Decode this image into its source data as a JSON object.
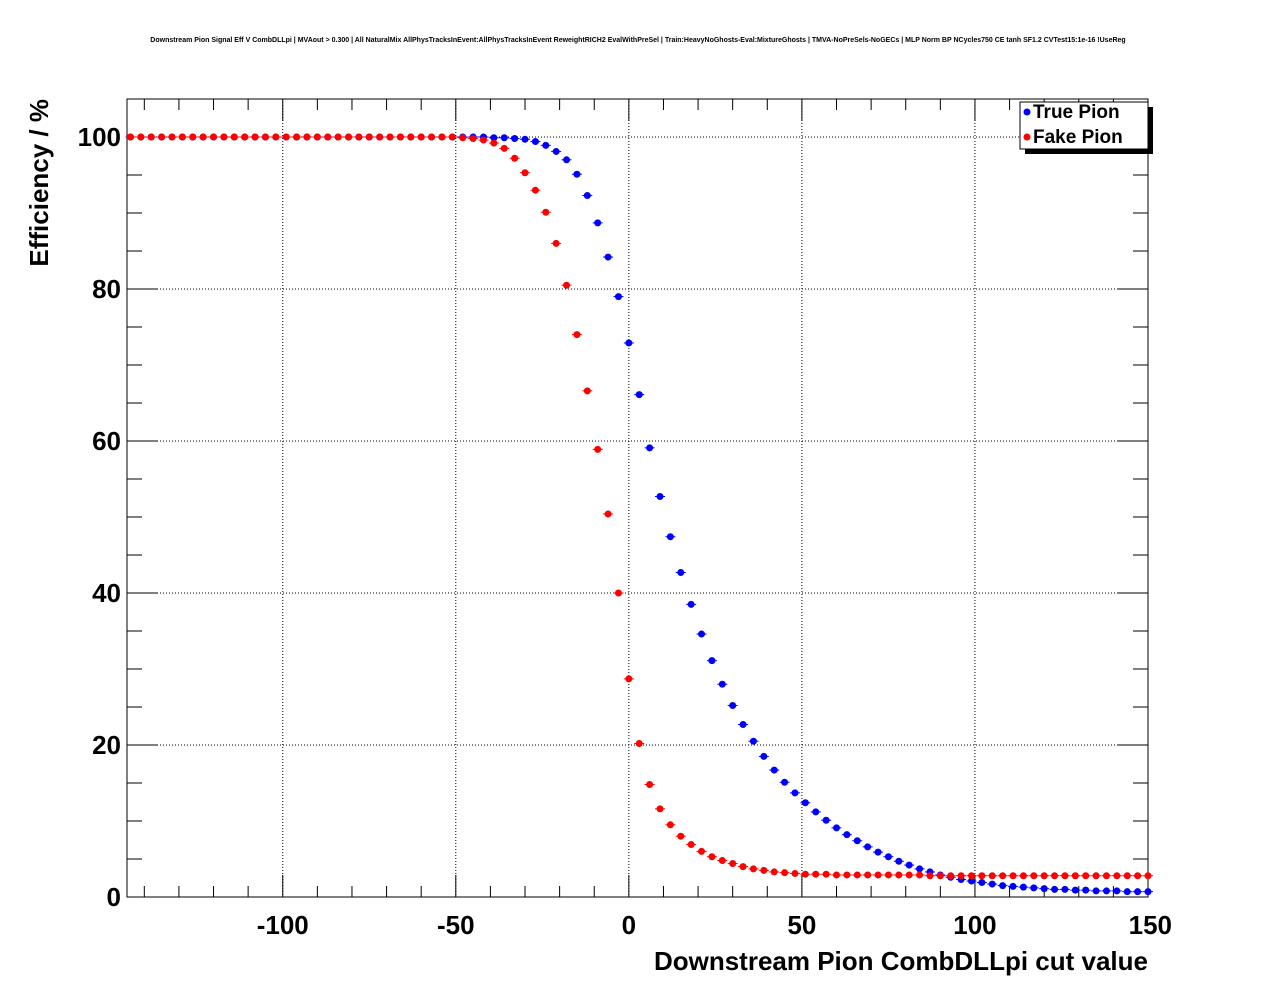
{
  "chart_data": {
    "type": "scatter",
    "title": "Downstream Pion Signal Eff V CombDLLpi | MVAout > 0.300 | All NaturalMix AllPhysTracksInEvent:AllPhysTracksInEvent ReweightRICH2 EvalWithPreSel | Train:HeavyNoGhosts-Eval:MixtureGhosts | TMVA-NoPreSels-NoGECs | MLP Norm BP NCycles750 CE tanh SF1.2 CVTest15:1e-16 !UseReg",
    "xlabel": "Downstream Pion CombDLLpi cut value",
    "ylabel": "Efficiency / %",
    "xlim": [
      -145,
      150
    ],
    "ylim": [
      0,
      105
    ],
    "xticks": [
      -100,
      -50,
      0,
      50,
      100,
      150
    ],
    "yticks": [
      0,
      20,
      40,
      60,
      80,
      100
    ],
    "xtick_labels": [
      "-100",
      "-50",
      "0",
      "50",
      "100",
      "150"
    ],
    "ytick_labels": [
      "0",
      "20",
      "40",
      "60",
      "80",
      "100"
    ],
    "grid": true,
    "legend_position": "top-right",
    "x": [
      -144,
      -141,
      -138,
      -135,
      -132,
      -129,
      -126,
      -123,
      -120,
      -117,
      -114,
      -111,
      -108,
      -105,
      -102,
      -99,
      -96,
      -93,
      -90,
      -87,
      -84,
      -81,
      -78,
      -75,
      -72,
      -69,
      -66,
      -63,
      -60,
      -57,
      -54,
      -51,
      -48,
      -45,
      -42,
      -39,
      -36,
      -33,
      -30,
      -27,
      -24,
      -21,
      -18,
      -15,
      -12,
      -9,
      -6,
      -3,
      0,
      3,
      6,
      9,
      12,
      15,
      18,
      21,
      24,
      27,
      30,
      33,
      36,
      39,
      42,
      45,
      48,
      51,
      54,
      57,
      60,
      63,
      66,
      69,
      72,
      75,
      78,
      81,
      84,
      87,
      90,
      93,
      96,
      99,
      102,
      105,
      108,
      111,
      114,
      117,
      120,
      123,
      126,
      129,
      132,
      135,
      138,
      141,
      144,
      147,
      150
    ],
    "series": [
      {
        "name": "True Pion",
        "color": "#0000ff",
        "values": [
          100,
          100,
          100,
          100,
          100,
          100,
          100,
          100,
          100,
          100,
          100,
          100,
          100,
          100,
          100,
          100,
          100,
          100,
          100,
          100,
          100,
          100,
          100,
          100,
          100,
          100,
          100,
          100,
          100,
          100,
          100,
          100,
          100,
          100,
          100,
          99.9,
          99.9,
          99.8,
          99.7,
          99.4,
          98.9,
          98.1,
          97.0,
          95.1,
          92.3,
          88.7,
          84.2,
          79.0,
          72.9,
          66.1,
          59.1,
          52.7,
          47.4,
          42.7,
          38.5,
          34.6,
          31.1,
          28.0,
          25.2,
          22.7,
          20.5,
          18.5,
          16.7,
          15.1,
          13.7,
          12.4,
          11.2,
          10.1,
          9.1,
          8.2,
          7.4,
          6.6,
          5.9,
          5.3,
          4.7,
          4.2,
          3.7,
          3.3,
          2.9,
          2.6,
          2.3,
          2.1,
          1.9,
          1.7,
          1.5,
          1.4,
          1.3,
          1.2,
          1.1,
          1.0,
          1.0,
          0.9,
          0.9,
          0.8,
          0.8,
          0.8,
          0.7,
          0.7,
          0.7
        ]
      },
      {
        "name": "Fake Pion",
        "color": "#ff0000",
        "values": [
          100,
          100,
          100,
          100,
          100,
          100,
          100,
          100,
          100,
          100,
          100,
          100,
          100,
          100,
          100,
          100,
          100,
          100,
          100,
          100,
          100,
          100,
          100,
          100,
          100,
          100,
          100,
          100,
          100,
          100,
          100,
          100,
          99.9,
          99.8,
          99.6,
          99.2,
          98.5,
          97.2,
          95.3,
          93.0,
          90.1,
          86.0,
          80.5,
          74.0,
          66.6,
          58.9,
          50.4,
          40.0,
          28.7,
          20.2,
          14.8,
          11.6,
          9.5,
          8.0,
          6.9,
          6.0,
          5.3,
          4.8,
          4.4,
          4.0,
          3.7,
          3.5,
          3.3,
          3.2,
          3.1,
          3.0,
          3.0,
          3.0,
          2.9,
          2.9,
          2.9,
          2.9,
          2.9,
          2.9,
          2.9,
          2.9,
          2.9,
          2.8,
          2.8,
          2.8,
          2.8,
          2.8,
          2.8,
          2.8,
          2.8,
          2.8,
          2.8,
          2.8,
          2.8,
          2.8,
          2.8,
          2.8,
          2.8,
          2.8,
          2.8,
          2.8,
          2.8,
          2.8,
          2.8
        ]
      }
    ]
  }
}
